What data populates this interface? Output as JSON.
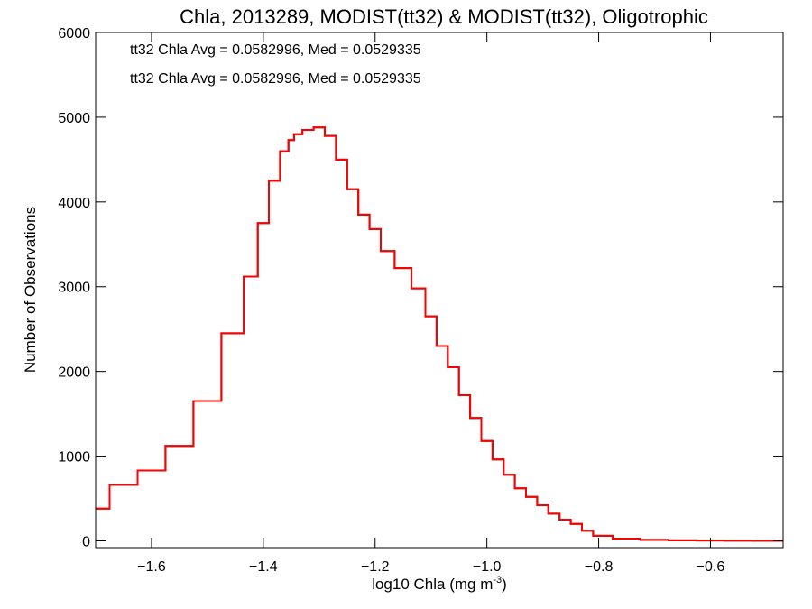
{
  "chart_data": {
    "type": "line",
    "title": "Chla, 2013289, MODIST(tt32) & MODIST(tt32), Oligotrophic",
    "xlabel": "log10 Chla (mg m",
    "xlabel_sup": "-3",
    "xlabel_tail": ")",
    "ylabel": "Number of Observations",
    "xlim": [
      -1.7,
      -0.47
    ],
    "ylim": [
      -80,
      6000
    ],
    "xticks": [
      -1.6,
      -1.4,
      -1.2,
      -1.0,
      -0.8,
      -0.6
    ],
    "xtick_labels": [
      "−1.6",
      "−1.4",
      "−1.2",
      "−1.0",
      "−0.8",
      "−0.6"
    ],
    "yticks": [
      0,
      1000,
      2000,
      3000,
      4000,
      5000,
      6000
    ],
    "ytick_labels": [
      "0",
      "1000",
      "2000",
      "3000",
      "4000",
      "5000",
      "6000"
    ],
    "step": true,
    "annotations": [
      {
        "text": "tt32 Chla Avg = 0.0582996, Med = 0.0529335",
        "color": "#000000"
      },
      {
        "text": "tt32 Chla Avg = 0.0582996, Med = 0.0529335",
        "color": "#ff0000"
      }
    ],
    "series": [
      {
        "color": "#000000",
        "x": [
          -1.7,
          -1.65,
          -1.6,
          -1.55,
          -1.5,
          -1.45,
          -1.42,
          -1.4,
          -1.38,
          -1.36,
          -1.35,
          -1.34,
          -1.32,
          -1.3,
          -1.28,
          -1.26,
          -1.24,
          -1.22,
          -1.2,
          -1.18,
          -1.15,
          -1.12,
          -1.1,
          -1.08,
          -1.06,
          -1.04,
          -1.02,
          -1.0,
          -0.98,
          -0.96,
          -0.94,
          -0.92,
          -0.9,
          -0.88,
          -0.86,
          -0.84,
          -0.82,
          -0.8,
          -0.75,
          -0.7,
          -0.65,
          -0.6,
          -0.55,
          -0.5,
          -0.47
        ],
        "y": [
          380,
          660,
          830,
          1120,
          1650,
          2450,
          3120,
          3750,
          4250,
          4600,
          4730,
          4800,
          4850,
          4880,
          4780,
          4500,
          4150,
          3850,
          3680,
          3420,
          3220,
          2980,
          2650,
          2300,
          2050,
          1720,
          1450,
          1180,
          960,
          780,
          620,
          520,
          420,
          320,
          250,
          200,
          120,
          60,
          25,
          12,
          6,
          4,
          2,
          1,
          0
        ]
      },
      {
        "color": "#ff0000",
        "x": [
          -1.7,
          -1.65,
          -1.6,
          -1.55,
          -1.5,
          -1.45,
          -1.42,
          -1.4,
          -1.38,
          -1.36,
          -1.35,
          -1.34,
          -1.32,
          -1.3,
          -1.28,
          -1.26,
          -1.24,
          -1.22,
          -1.2,
          -1.18,
          -1.15,
          -1.12,
          -1.1,
          -1.08,
          -1.06,
          -1.04,
          -1.02,
          -1.0,
          -0.98,
          -0.96,
          -0.94,
          -0.92,
          -0.9,
          -0.88,
          -0.86,
          -0.84,
          -0.82,
          -0.8,
          -0.75,
          -0.7,
          -0.65,
          -0.6,
          -0.55,
          -0.5,
          -0.47
        ],
        "y": [
          380,
          660,
          830,
          1120,
          1650,
          2450,
          3120,
          3750,
          4250,
          4600,
          4730,
          4800,
          4850,
          4880,
          4780,
          4500,
          4150,
          3850,
          3680,
          3420,
          3220,
          2980,
          2650,
          2300,
          2050,
          1720,
          1450,
          1180,
          960,
          780,
          620,
          520,
          420,
          320,
          250,
          200,
          120,
          60,
          25,
          12,
          6,
          4,
          2,
          1,
          0
        ]
      }
    ]
  }
}
